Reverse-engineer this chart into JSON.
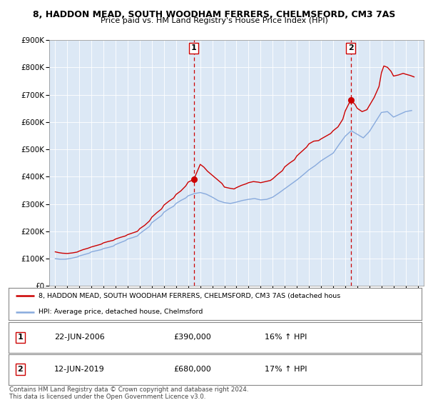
{
  "title1": "8, HADDON MEAD, SOUTH WOODHAM FERRERS, CHELMSFORD, CM3 7AS",
  "title2": "Price paid vs. HM Land Registry's House Price Index (HPI)",
  "xlim": [
    1994.5,
    2025.5
  ],
  "ylim": [
    0,
    900000
  ],
  "yticks": [
    0,
    100000,
    200000,
    300000,
    400000,
    500000,
    600000,
    700000,
    800000,
    900000
  ],
  "ytick_labels": [
    "£0",
    "£100K",
    "£200K",
    "£300K",
    "£400K",
    "£500K",
    "£600K",
    "£700K",
    "£800K",
    "£900K"
  ],
  "xticks": [
    1995,
    1996,
    1997,
    1998,
    1999,
    2000,
    2001,
    2002,
    2003,
    2004,
    2005,
    2006,
    2007,
    2008,
    2009,
    2010,
    2011,
    2012,
    2013,
    2014,
    2015,
    2016,
    2017,
    2018,
    2019,
    2020,
    2021,
    2022,
    2023,
    2024,
    2025
  ],
  "red_line_color": "#cc0000",
  "blue_line_color": "#88aadd",
  "marker1_x": 2006.47,
  "marker1_y": 390000,
  "marker2_x": 2019.45,
  "marker2_y": 680000,
  "vline1_x": 2006.47,
  "vline2_x": 2019.45,
  "legend_label_red": "8, HADDON MEAD, SOUTH WOODHAM FERRERS, CHELMSFORD, CM3 7AS (detached hous",
  "legend_label_blue": "HPI: Average price, detached house, Chelmsford",
  "table_row1": [
    "1",
    "22-JUN-2006",
    "£390,000",
    "16% ↑ HPI"
  ],
  "table_row2": [
    "2",
    "12-JUN-2019",
    "£680,000",
    "17% ↑ HPI"
  ],
  "footer": "Contains HM Land Registry data © Crown copyright and database right 2024.\nThis data is licensed under the Open Government Licence v3.0.",
  "plot_bg_color": "#dce8f5",
  "grid_color": "#c0d0e8"
}
